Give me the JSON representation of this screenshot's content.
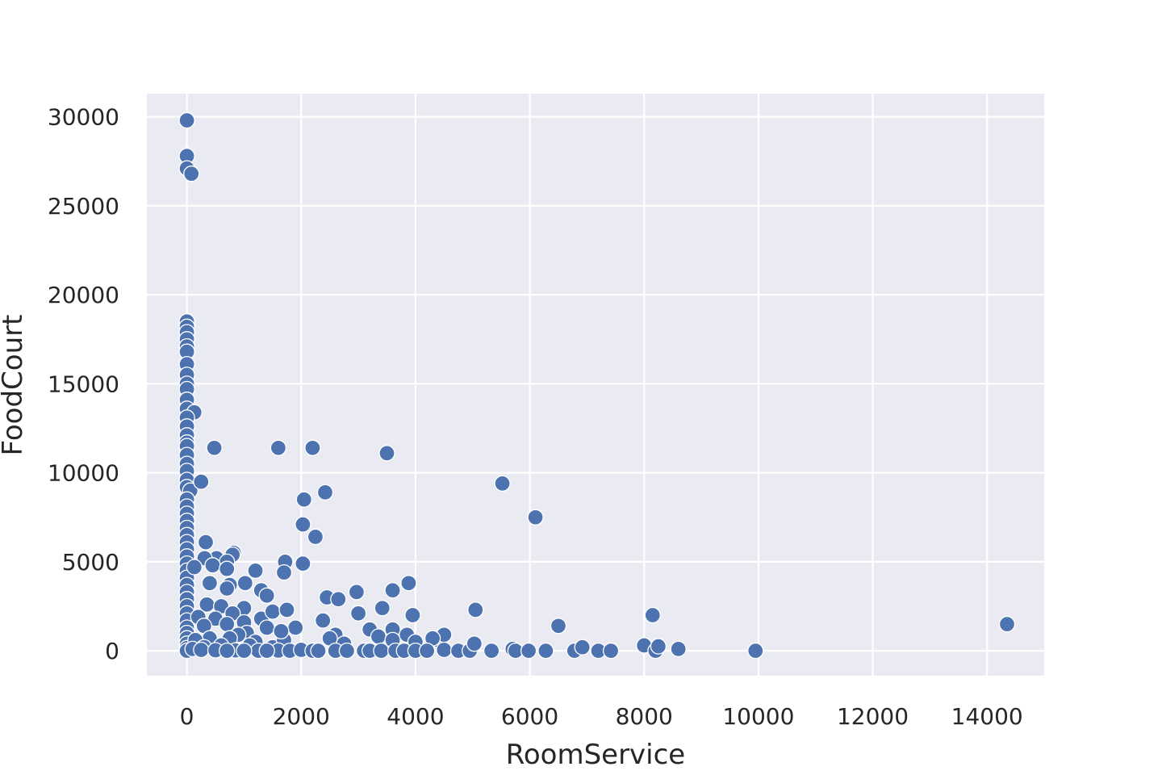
{
  "chart_data": {
    "type": "scatter",
    "title": "",
    "xlabel": "RoomService",
    "ylabel": "FoodCourt",
    "xlim": [
      -700,
      15000
    ],
    "ylim": [
      -1400,
      31300
    ],
    "xticks": [
      0,
      2000,
      4000,
      6000,
      8000,
      10000,
      12000,
      14000
    ],
    "yticks": [
      0,
      5000,
      10000,
      15000,
      20000,
      25000,
      30000
    ],
    "grid": true,
    "legend": "none",
    "colors": {
      "background": "#eaeaf2",
      "grid": "#ffffff",
      "point": "#4c72b0",
      "point_edge": "#ffffff",
      "text": "#262626"
    },
    "series": [
      {
        "points": [
          [
            0,
            29800
          ],
          [
            0,
            27800
          ],
          [
            0,
            27100
          ],
          [
            80,
            26800
          ],
          [
            0,
            18500
          ],
          [
            0,
            18200
          ],
          [
            0,
            17900
          ],
          [
            0,
            17500
          ],
          [
            0,
            17100
          ],
          [
            0,
            16800
          ],
          [
            0,
            16100
          ],
          [
            0,
            15500
          ],
          [
            0,
            15000
          ],
          [
            0,
            14700
          ],
          [
            0,
            14100
          ],
          [
            0,
            13600
          ],
          [
            130,
            13400
          ],
          [
            0,
            13100
          ],
          [
            0,
            12600
          ],
          [
            0,
            12100
          ],
          [
            0,
            11700
          ],
          [
            0,
            11500
          ],
          [
            0,
            11000
          ],
          [
            0,
            10500
          ],
          [
            0,
            10100
          ],
          [
            0,
            9600
          ],
          [
            0,
            9200
          ],
          [
            60,
            9000
          ],
          [
            0,
            8500
          ],
          [
            0,
            8100
          ],
          [
            0,
            7700
          ],
          [
            0,
            7300
          ],
          [
            0,
            6900
          ],
          [
            0,
            6500
          ],
          [
            0,
            6100
          ],
          [
            0,
            5700
          ],
          [
            0,
            5300
          ],
          [
            0,
            4900
          ],
          [
            0,
            4500
          ],
          [
            0,
            4100
          ],
          [
            0,
            3700
          ],
          [
            0,
            3300
          ],
          [
            0,
            2900
          ],
          [
            0,
            2500
          ],
          [
            0,
            2100
          ],
          [
            0,
            1700
          ],
          [
            0,
            1300
          ],
          [
            0,
            1000
          ],
          [
            0,
            700
          ],
          [
            0,
            400
          ],
          [
            0,
            150
          ],
          [
            0,
            0
          ],
          [
            480,
            11400
          ],
          [
            250,
            9500
          ],
          [
            330,
            6100
          ],
          [
            820,
            5500
          ],
          [
            800,
            5400
          ],
          [
            520,
            5200
          ],
          [
            700,
            5000
          ],
          [
            310,
            5200
          ],
          [
            450,
            4800
          ],
          [
            130,
            4700
          ],
          [
            1200,
            4500
          ],
          [
            700,
            4600
          ],
          [
            1020,
            3800
          ],
          [
            750,
            3700
          ],
          [
            400,
            3800
          ],
          [
            700,
            3500
          ],
          [
            1300,
            3400
          ],
          [
            1400,
            3100
          ],
          [
            350,
            2600
          ],
          [
            600,
            2500
          ],
          [
            1000,
            2400
          ],
          [
            800,
            2100
          ],
          [
            200,
            1900
          ],
          [
            500,
            1800
          ],
          [
            1300,
            1800
          ],
          [
            1500,
            2200
          ],
          [
            1000,
            1600
          ],
          [
            700,
            1500
          ],
          [
            300,
            1400
          ],
          [
            1400,
            1300
          ],
          [
            1050,
            1000
          ],
          [
            900,
            900
          ],
          [
            400,
            700
          ],
          [
            150,
            600
          ],
          [
            750,
            700
          ],
          [
            1200,
            500
          ],
          [
            600,
            300
          ],
          [
            300,
            200
          ],
          [
            1500,
            200
          ],
          [
            1700,
            600
          ],
          [
            1900,
            1300
          ],
          [
            1650,
            1100
          ],
          [
            1100,
            300
          ],
          [
            100,
            100
          ],
          [
            250,
            50
          ],
          [
            500,
            30
          ],
          [
            850,
            20
          ],
          [
            1250,
            0
          ],
          [
            1600,
            10
          ],
          [
            1800,
            0
          ],
          [
            2000,
            50
          ],
          [
            2200,
            0
          ],
          [
            1400,
            0
          ],
          [
            700,
            0
          ],
          [
            1000,
            0
          ],
          [
            1600,
            11400
          ],
          [
            2200,
            11400
          ],
          [
            3500,
            11100
          ],
          [
            2050,
            8500
          ],
          [
            2420,
            8900
          ],
          [
            2030,
            7100
          ],
          [
            2250,
            6400
          ],
          [
            1720,
            5000
          ],
          [
            2030,
            4900
          ],
          [
            1700,
            4400
          ],
          [
            1750,
            2300
          ],
          [
            2450,
            3000
          ],
          [
            2650,
            2900
          ],
          [
            2970,
            3300
          ],
          [
            3600,
            3400
          ],
          [
            3880,
            3800
          ],
          [
            3420,
            2400
          ],
          [
            3000,
            2100
          ],
          [
            3950,
            2000
          ],
          [
            2380,
            1700
          ],
          [
            2600,
            900
          ],
          [
            3200,
            1200
          ],
          [
            3350,
            800
          ],
          [
            3600,
            1200
          ],
          [
            3600,
            600
          ],
          [
            3850,
            900
          ],
          [
            4400,
            600
          ],
          [
            4500,
            900
          ],
          [
            4300,
            700
          ],
          [
            2500,
            700
          ],
          [
            2750,
            400
          ],
          [
            4000,
            500
          ],
          [
            2300,
            0
          ],
          [
            2600,
            0
          ],
          [
            2800,
            0
          ],
          [
            3100,
            0
          ],
          [
            3200,
            0
          ],
          [
            3400,
            0
          ],
          [
            3650,
            0
          ],
          [
            3800,
            0
          ],
          [
            4000,
            0
          ],
          [
            4200,
            0
          ],
          [
            4500,
            50
          ],
          [
            4750,
            0
          ],
          [
            4950,
            0
          ],
          [
            5050,
            2300
          ],
          [
            5030,
            400
          ],
          [
            5330,
            0
          ],
          [
            5520,
            9400
          ],
          [
            6100,
            7500
          ],
          [
            5700,
            100
          ],
          [
            5750,
            0
          ],
          [
            5980,
            0
          ],
          [
            6280,
            0
          ],
          [
            6500,
            1400
          ],
          [
            6780,
            0
          ],
          [
            6920,
            200
          ],
          [
            7200,
            0
          ],
          [
            7420,
            0
          ],
          [
            8000,
            300
          ],
          [
            8150,
            2000
          ],
          [
            8200,
            0
          ],
          [
            8250,
            250
          ],
          [
            8600,
            100
          ],
          [
            9950,
            0
          ],
          [
            14350,
            1500
          ]
        ]
      }
    ]
  }
}
